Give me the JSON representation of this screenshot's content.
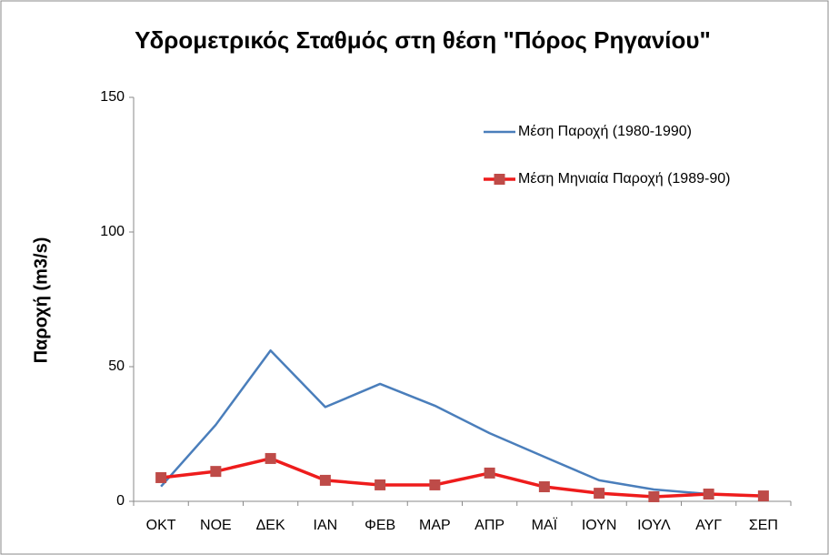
{
  "chart_data": {
    "type": "line",
    "title": "Υδρομετρικός Σταθμός στη θέση \"Πόρος Ρηγανίου\"",
    "y_label": "Παροχή (m3/s)",
    "categories": [
      "ΟΚΤ",
      "ΝΟΕ",
      "ΔΕΚ",
      "ΙΑΝ",
      "ΦΕΒ",
      "ΜΑΡ",
      "ΑΠΡ",
      "ΜΑΪ",
      "ΙΟΥΝ",
      "ΙΟΥΛ",
      "ΑΥΓ",
      "ΣΕΠ"
    ],
    "series": [
      {
        "name": "Μέση Παροχή (1980-1990)",
        "color": "#4a7ebb",
        "marker": "none",
        "values": [
          5.5,
          28.4,
          56,
          35,
          43.6,
          35.5,
          25.3,
          16.5,
          7.8,
          4.4,
          2.7,
          2
        ]
      },
      {
        "name": "Μέση Μηνιαία Παροχή (1989-90)",
        "color": "#ee1c1c",
        "marker": "square",
        "values": [
          8.8,
          11.1,
          15.9,
          7.8,
          6.1,
          6.1,
          10.5,
          5.4,
          3,
          1.7,
          2.7,
          2
        ]
      }
    ],
    "ylim": [
      0,
      150
    ],
    "yticks": [
      0,
      50,
      100,
      150
    ],
    "grid": false
  }
}
